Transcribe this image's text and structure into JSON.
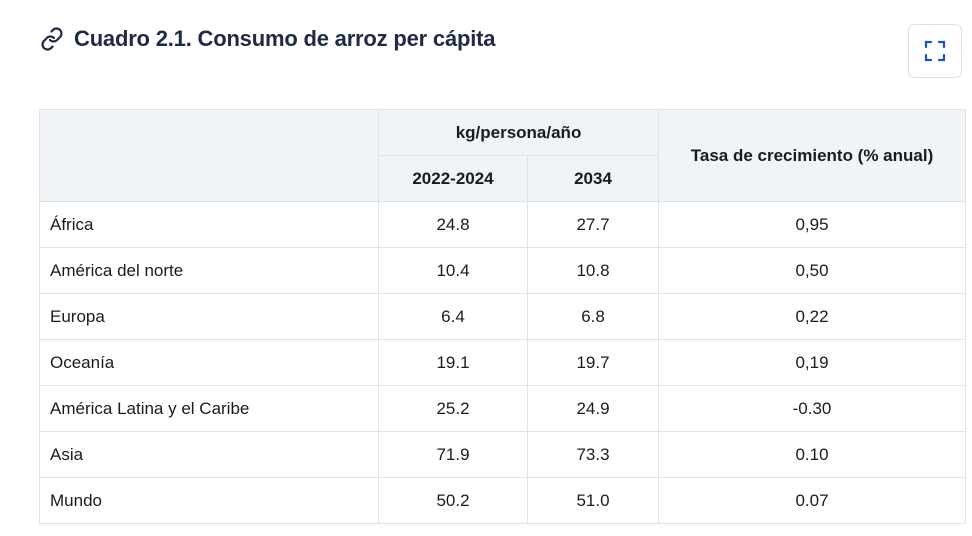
{
  "title": "Cuadro 2.1. Consumo de arroz per cápita",
  "icons": {
    "title_icon": "link-icon",
    "expand_button": "expand-icon"
  },
  "table": {
    "group_header": "kg/persona/año",
    "col_2022": "2022-2024",
    "col_2034": "2034",
    "growth_header": "Tasa de crecimiento (% anual)",
    "rows": [
      {
        "region": "África",
        "v2022": "24.8",
        "v2034": "27.7",
        "growth": "0,95"
      },
      {
        "region": "América del norte",
        "v2022": "10.4",
        "v2034": "10.8",
        "growth": "0,50"
      },
      {
        "region": "Europa",
        "v2022": "6.4",
        "v2034": "6.8",
        "growth": "0,22"
      },
      {
        "region": "Oceanía",
        "v2022": "19.1",
        "v2034": "19.7",
        "growth": "0,19"
      },
      {
        "region": "América Latina y el Caribe",
        "v2022": "25.2",
        "v2034": "24.9",
        "growth": "-0.30"
      },
      {
        "region": "Asia",
        "v2022": "71.9",
        "v2034": "73.3",
        "growth": "0.10"
      },
      {
        "region": "Mundo",
        "v2022": "50.2",
        "v2034": "51.0",
        "growth": "0.07"
      }
    ]
  }
}
